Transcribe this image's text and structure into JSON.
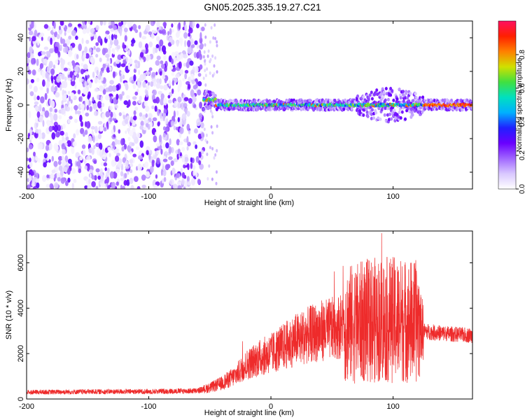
{
  "title": "GN05.2025.335.19.27.C21",
  "chart_data": [
    {
      "type": "heatmap",
      "xlabel": "Height of straight line (km)",
      "ylabel": "Frequency (Hz)",
      "xlim": [
        -200,
        165
      ],
      "ylim": [
        -50,
        50
      ],
      "xticks": [
        "-200",
        "-100",
        "0",
        "100"
      ],
      "yticks": [
        "40",
        "20",
        "0",
        "-20",
        "-40"
      ],
      "colorbar_label": "Normalized spectral amplitude",
      "colorbar_ticks": [
        "0.0",
        "0.2",
        "0.4",
        "0.6",
        "0.8"
      ],
      "colorbar_range": [
        0,
        1
      ],
      "colormap": [
        "#ffffff",
        "#d9c8ff",
        "#a066ff",
        "#6a00ff",
        "#2020ff",
        "#00b0ff",
        "#00e0c0",
        "#40e040",
        "#d0e000",
        "#ff8000",
        "#ff2000",
        "#ff1060"
      ],
      "regions": [
        {
          "x": [
            -200,
            -55
          ],
          "y": [
            -50,
            50
          ],
          "description": "broadband noise",
          "amplitude": 0.1
        },
        {
          "x": [
            -55,
            165
          ],
          "y": [
            -5,
            7
          ],
          "description": "narrow band near 0 Hz",
          "amplitude": 0.9
        }
      ]
    },
    {
      "type": "line",
      "xlabel": "Height of straight line (km)",
      "ylabel": "SNR (10 * v/v)",
      "xlim": [
        -200,
        165
      ],
      "ylim": [
        0,
        7400
      ],
      "xticks": [
        "-200",
        "-100",
        "0",
        "100"
      ],
      "yticks": [
        "0",
        "2000",
        "4000",
        "6000"
      ],
      "series": [
        {
          "color": "#ee2b2b",
          "x": [
            -200,
            -150,
            -100,
            -60,
            -50,
            -40,
            -30,
            -20,
            -10,
            0,
            10,
            20,
            30,
            40,
            50,
            60,
            70,
            80,
            90,
            100,
            110,
            120,
            125,
            130,
            140,
            150,
            165
          ],
          "y": [
            300,
            320,
            330,
            360,
            500,
            700,
            1000,
            1500,
            1800,
            2000,
            2300,
            2600,
            2800,
            3000,
            3100,
            3250,
            3350,
            3450,
            3500,
            3500,
            3450,
            3400,
            3000,
            2950,
            2900,
            2850,
            2800
          ]
        }
      ]
    }
  ]
}
